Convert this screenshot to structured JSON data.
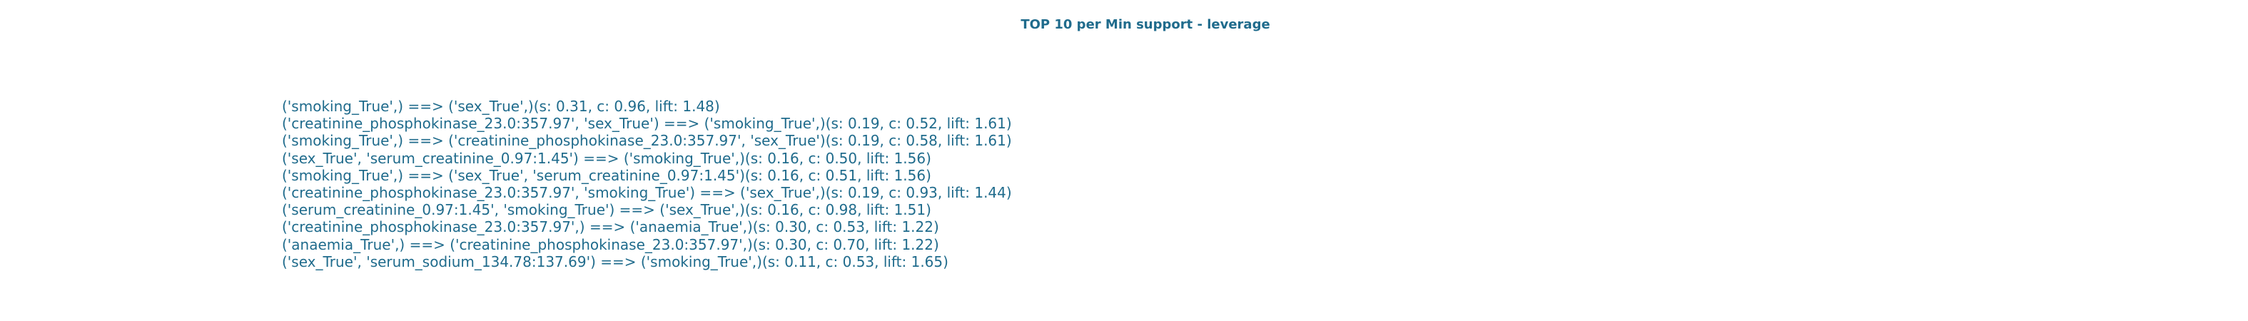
{
  "chart_data": {
    "type": "table",
    "title": "TOP 10 per Min support - leverage",
    "rules": [
      "('smoking_True',) ==> ('sex_True',)(s: 0.31, c: 0.96, lift: 1.48)",
      "('creatinine_phosphokinase_23.0:357.97', 'sex_True') ==> ('smoking_True',)(s: 0.19, c: 0.52, lift: 1.61)",
      "('smoking_True',) ==> ('creatinine_phosphokinase_23.0:357.97', 'sex_True')(s: 0.19, c: 0.58, lift: 1.61)",
      "('sex_True', 'serum_creatinine_0.97:1.45') ==> ('smoking_True',)(s: 0.16, c: 0.50, lift: 1.56)",
      "('smoking_True',) ==> ('sex_True', 'serum_creatinine_0.97:1.45')(s: 0.16, c: 0.51, lift: 1.56)",
      "('creatinine_phosphokinase_23.0:357.97', 'smoking_True') ==> ('sex_True',)(s: 0.19, c: 0.93, lift: 1.44)",
      "('serum_creatinine_0.97:1.45', 'smoking_True') ==> ('sex_True',)(s: 0.16, c: 0.98, lift: 1.51)",
      "('creatinine_phosphokinase_23.0:357.97',) ==> ('anaemia_True',)(s: 0.30, c: 0.53, lift: 1.22)",
      "('anaemia_True',) ==> ('creatinine_phosphokinase_23.0:357.97',)(s: 0.30, c: 0.70, lift: 1.22)",
      "('sex_True', 'serum_sodium_134.78:137.69') ==> ('smoking_True',)(s: 0.11, c: 0.53, lift: 1.65)"
    ],
    "text_color": "#1f6b8c"
  }
}
